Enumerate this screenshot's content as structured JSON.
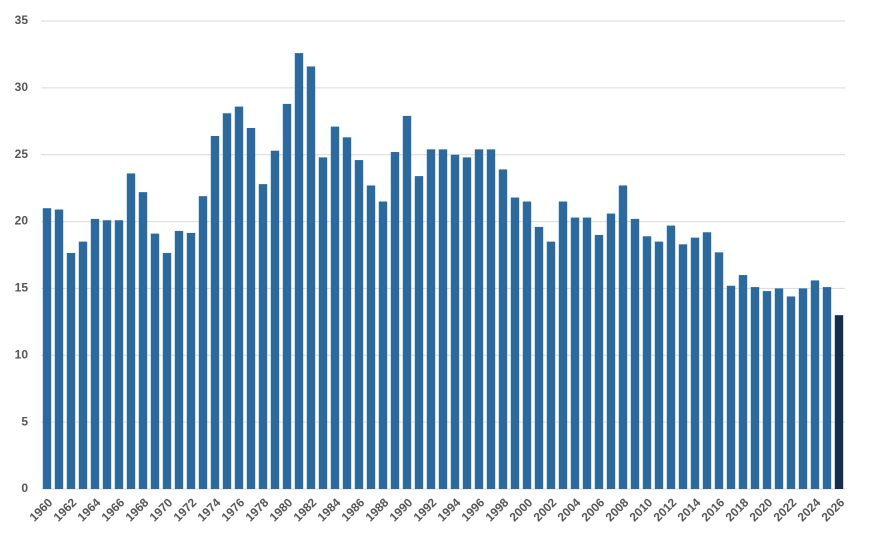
{
  "chart_data": {
    "type": "bar",
    "categories": [
      "1960",
      null,
      "1962",
      null,
      "1964",
      null,
      "1966",
      null,
      "1968",
      null,
      "1970",
      null,
      "1972",
      null,
      "1974",
      null,
      "1976",
      null,
      "1978",
      null,
      "1980",
      null,
      "1982",
      null,
      "1984",
      null,
      "1986",
      null,
      "1988",
      null,
      "1990",
      null,
      "1992",
      null,
      "1994",
      null,
      "1996",
      null,
      "1998",
      null,
      "2000",
      null,
      "2002",
      null,
      "2004",
      null,
      "2006",
      null,
      "2008",
      null,
      "2010",
      null,
      "2012",
      null,
      "2014",
      null,
      "2016",
      null,
      "2018",
      null,
      "2020",
      null,
      "2022",
      null,
      "2024",
      null,
      "2026"
    ],
    "values": [
      21.0,
      20.9,
      17.65,
      18.5,
      20.2,
      20.1,
      20.1,
      23.6,
      22.2,
      19.1,
      17.65,
      19.3,
      19.15,
      21.9,
      26.4,
      28.1,
      28.6,
      27.0,
      22.8,
      25.3,
      28.8,
      32.6,
      31.6,
      24.8,
      27.1,
      26.3,
      24.6,
      22.7,
      21.5,
      25.2,
      27.9,
      23.4,
      25.4,
      25.4,
      25.0,
      24.8,
      25.4,
      25.4,
      23.9,
      21.8,
      21.5,
      19.6,
      18.5,
      21.5,
      20.3,
      20.3,
      19.0,
      20.6,
      22.7,
      20.2,
      18.9,
      18.5,
      19.7,
      18.3,
      18.8,
      19.2,
      17.7,
      15.2,
      16.0,
      15.1,
      14.8,
      15.0,
      14.4,
      15.0,
      15.6,
      15.1,
      13.0
    ],
    "colors": [
      "#2c6a9e",
      "#2c6a9e",
      "#2c6a9e",
      "#2c6a9e",
      "#2c6a9e",
      "#2c6a9e",
      "#2c6a9e",
      "#2c6a9e",
      "#2c6a9e",
      "#2c6a9e",
      "#2c6a9e",
      "#2c6a9e",
      "#2c6a9e",
      "#2c6a9e",
      "#2c6a9e",
      "#2c6a9e",
      "#2c6a9e",
      "#2c6a9e",
      "#2c6a9e",
      "#2c6a9e",
      "#2c6a9e",
      "#2c6a9e",
      "#2c6a9e",
      "#2c6a9e",
      "#2c6a9e",
      "#2c6a9e",
      "#2c6a9e",
      "#2c6a9e",
      "#2c6a9e",
      "#2c6a9e",
      "#2c6a9e",
      "#2c6a9e",
      "#2c6a9e",
      "#2c6a9e",
      "#2c6a9e",
      "#2c6a9e",
      "#2c6a9e",
      "#2c6a9e",
      "#2c6a9e",
      "#2c6a9e",
      "#2c6a9e",
      "#2c6a9e",
      "#2c6a9e",
      "#2c6a9e",
      "#2c6a9e",
      "#2c6a9e",
      "#2c6a9e",
      "#2c6a9e",
      "#2c6a9e",
      "#2c6a9e",
      "#2c6a9e",
      "#2c6a9e",
      "#2c6a9e",
      "#2c6a9e",
      "#2c6a9e",
      "#2c6a9e",
      "#2c6a9e",
      "#2c6a9e",
      "#2c6a9e",
      "#2c6a9e",
      "#2c6a9e",
      "#2c6a9e",
      "#2c6a9e",
      "#2c6a9e",
      "#2c6a9e",
      "#2c6a9e",
      "#142f4c"
    ],
    "ylim": [
      0,
      35
    ],
    "yticks": [
      0,
      5,
      10,
      15,
      20,
      25,
      30,
      35
    ],
    "grid": true
  }
}
